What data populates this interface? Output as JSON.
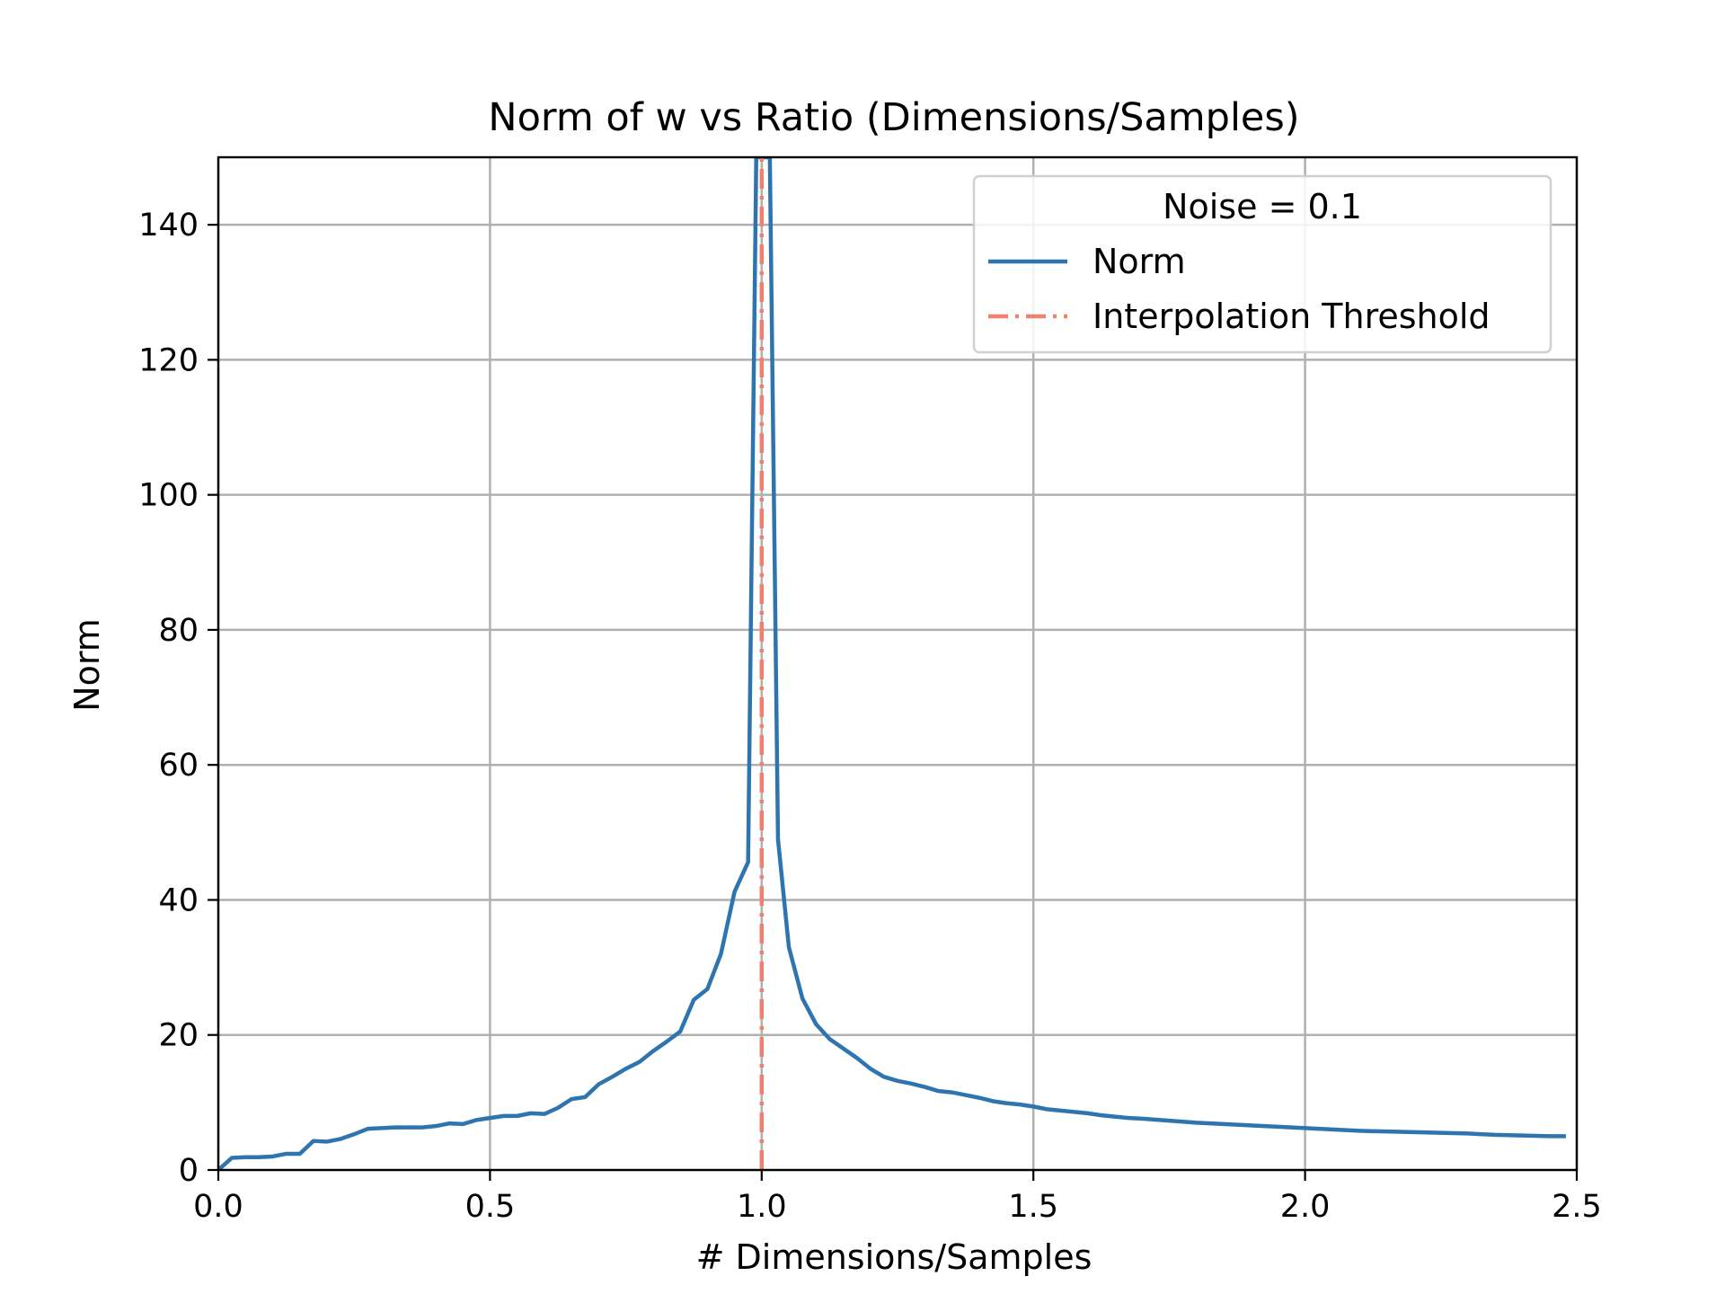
{
  "chart_data": {
    "type": "line",
    "title": "Norm of w vs  Ratio (Dimensions/Samples)",
    "xlabel": "# Dimensions/Samples",
    "ylabel": "Norm",
    "xlim": [
      0.0,
      2.5
    ],
    "ylim": [
      0,
      150
    ],
    "xticks": [
      0.0,
      0.5,
      1.0,
      1.5,
      2.0,
      2.5
    ],
    "xtick_labels": [
      "0.0",
      "0.5",
      "1.0",
      "1.5",
      "2.0",
      "2.5"
    ],
    "yticks": [
      0,
      20,
      40,
      60,
      80,
      100,
      120,
      140
    ],
    "ytick_labels": [
      "0",
      "20",
      "40",
      "60",
      "80",
      "100",
      "120",
      "140"
    ],
    "grid": true,
    "legend": {
      "title": "Noise = 0.1",
      "position": "top-right",
      "entries": [
        "Norm",
        "Interpolation Threshold"
      ]
    },
    "series": [
      {
        "name": "Norm",
        "color": "#2e75b0",
        "style": "solid",
        "x": [
          0.0,
          0.025,
          0.05,
          0.075,
          0.1,
          0.125,
          0.15,
          0.175,
          0.2,
          0.225,
          0.25,
          0.275,
          0.3,
          0.325,
          0.35,
          0.375,
          0.4,
          0.425,
          0.45,
          0.475,
          0.5,
          0.525,
          0.55,
          0.575,
          0.6,
          0.625,
          0.65,
          0.675,
          0.7,
          0.725,
          0.75,
          0.775,
          0.8,
          0.825,
          0.85,
          0.875,
          0.9,
          0.925,
          0.95,
          0.975,
          0.99,
          1.015,
          1.03,
          1.05,
          1.075,
          1.1,
          1.125,
          1.15,
          1.175,
          1.2,
          1.225,
          1.25,
          1.275,
          1.3,
          1.325,
          1.35,
          1.375,
          1.4,
          1.425,
          1.45,
          1.475,
          1.5,
          1.525,
          1.55,
          1.575,
          1.6,
          1.625,
          1.65,
          1.675,
          1.7,
          1.75,
          1.8,
          1.85,
          1.9,
          1.95,
          2.0,
          2.05,
          2.1,
          2.15,
          2.2,
          2.25,
          2.3,
          2.35,
          2.4,
          2.45,
          2.48
        ],
        "y": [
          0.0,
          1.8,
          1.9,
          1.9,
          2.0,
          2.4,
          2.4,
          4.3,
          4.2,
          4.6,
          5.3,
          6.1,
          6.2,
          6.3,
          6.3,
          6.3,
          6.5,
          6.9,
          6.8,
          7.4,
          7.7,
          8.0,
          8.0,
          8.4,
          8.3,
          9.2,
          10.5,
          10.8,
          12.7,
          13.8,
          15.0,
          16.0,
          17.6,
          19.0,
          20.5,
          25.2,
          26.8,
          32.0,
          41.2,
          45.6,
          150,
          150,
          49.0,
          33.0,
          25.4,
          21.6,
          19.4,
          18.0,
          16.6,
          15.0,
          13.8,
          13.2,
          12.8,
          12.3,
          11.7,
          11.5,
          11.1,
          10.7,
          10.2,
          9.9,
          9.7,
          9.4,
          9.0,
          8.8,
          8.6,
          8.4,
          8.1,
          7.9,
          7.7,
          7.6,
          7.3,
          7.0,
          6.8,
          6.6,
          6.4,
          6.2,
          6.0,
          5.8,
          5.7,
          5.6,
          5.5,
          5.4,
          5.2,
          5.1,
          5.0,
          5.0
        ]
      },
      {
        "name": "Interpolation Threshold",
        "color": "#f08070",
        "style": "dashdot",
        "x": [
          1.0,
          1.0
        ],
        "y": [
          0,
          150
        ]
      }
    ]
  }
}
